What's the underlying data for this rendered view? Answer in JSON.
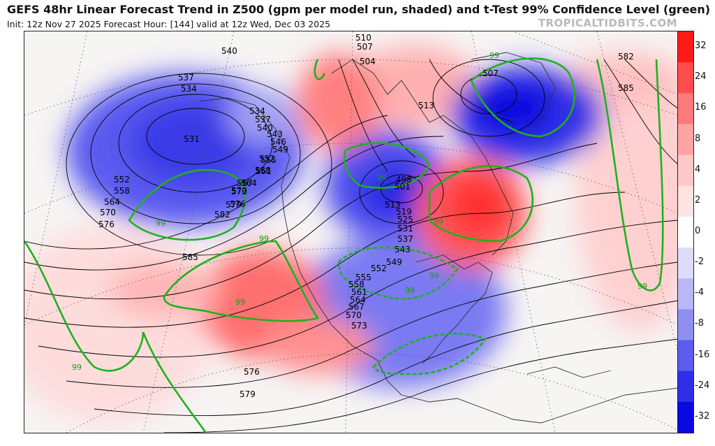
{
  "header": {
    "title": "GEFS 48hr Linear Forecast Trend in Z500 (gpm per model run, shaded) and t-Test 99% Confidence Level (green)",
    "subtitle": "Init: 12z Nov 27 2025   Forecast Hour: [144]   valid at 12z Wed, Dec 03 2025",
    "brand": "TROPICALTIDBITS.COM"
  },
  "colorbar": {
    "labels": [
      "32",
      "24",
      "16",
      "8",
      "4",
      "2",
      "0",
      "-2",
      "-4",
      "-8",
      "-16",
      "-24",
      "-32"
    ],
    "colors": [
      "#ff1a1a",
      "#ff4d4d",
      "#ff7a7a",
      "#ffa3a3",
      "#ffc8c8",
      "#ffe2e2",
      "#ffffff",
      "#dcdcfb",
      "#b8b8f7",
      "#8f8ff2",
      "#5c5cee",
      "#2f2fe8",
      "#0a0ae0"
    ]
  },
  "contour_labels": [
    "540",
    "537",
    "534",
    "531",
    "534",
    "537",
    "540",
    "543",
    "546",
    "549",
    "552",
    "555",
    "558",
    "561",
    "564",
    "567",
    "570",
    "573",
    "576",
    "579",
    "582",
    "585",
    "552",
    "558",
    "564",
    "570",
    "576",
    "510",
    "507",
    "504",
    "513",
    "507",
    "582",
    "585",
    "498",
    "501",
    "513",
    "519",
    "525",
    "531",
    "537",
    "543",
    "549",
    "552",
    "555",
    "558",
    "561",
    "564",
    "567",
    "570",
    "573",
    "576",
    "579"
  ],
  "confidence_label": "99",
  "colors": {
    "positive": "#ff4d4d",
    "negative": "#4343e8",
    "confidence": "#1db21d",
    "contour": "#000000"
  }
}
